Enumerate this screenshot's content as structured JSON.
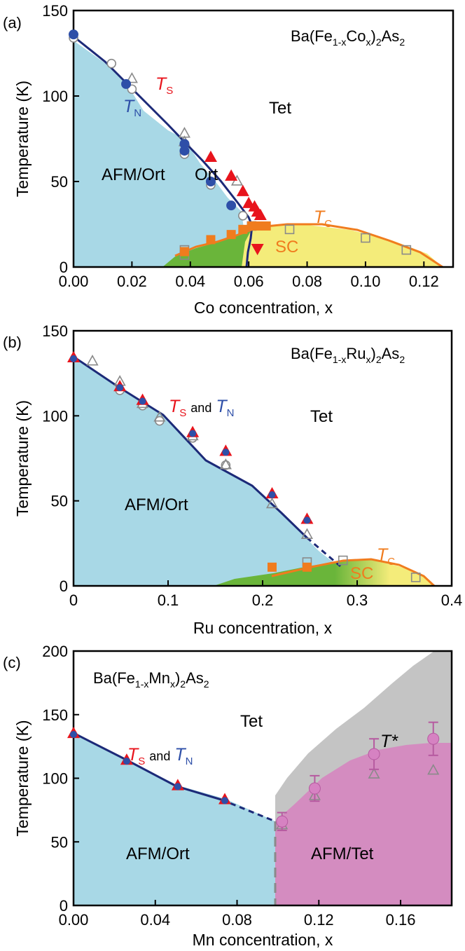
{
  "colors": {
    "afm_ort": "#a8d8e6",
    "sc_green": "#6ab53a",
    "sc_yellow": "#f4ec7a",
    "afm_tet": "#d48cc0",
    "gray_region": "#c4c4c4",
    "navy": "#1c2a78",
    "red": "#e8141c",
    "orange": "#f07c1e",
    "pink_marker": "#d682c2",
    "open_marker": "#8a8a8a",
    "blue_marker": "#2e4fa8"
  },
  "chart_data": [
    {
      "type": "scatter",
      "panel_label": "(a)",
      "compound": "Ba(Fe1-xCox)2As2",
      "xlabel": "Co concentration, x",
      "ylabel": "Temperature (K)",
      "xlim": [
        0,
        0.13
      ],
      "ylim": [
        0,
        150
      ],
      "xticks": [
        "0.00",
        "0.02",
        "0.04",
        "0.06",
        "0.08",
        "0.10",
        "0.12"
      ],
      "yticks": [
        "0",
        "50",
        "100",
        "150"
      ],
      "region_labels": [
        "AFM/Ort",
        "Ort",
        "Tet",
        "SC"
      ],
      "curve_labels": {
        "ts": "T",
        "ts_sub": "S",
        "tn": "T",
        "tn_sub": "N",
        "tc": "T",
        "tc_sub": "C"
      },
      "series": [
        {
          "name": "TN",
          "marker": "filled-circle",
          "x": [
            0.0,
            0.018,
            0.038,
            0.038,
            0.047,
            0.054
          ],
          "y": [
            136,
            107,
            72,
            68,
            50,
            36
          ]
        },
        {
          "name": "TS",
          "marker": "filled-triangle",
          "x": [
            0.047,
            0.054,
            0.058,
            0.06,
            0.062,
            0.063,
            0.064
          ],
          "y": [
            64,
            53,
            44,
            37,
            35,
            32,
            30
          ]
        },
        {
          "name": "TS (reentrant)",
          "marker": "filled-triangle-down",
          "x": [
            0.063
          ],
          "y": [
            11
          ]
        },
        {
          "name": "TC",
          "marker": "filled-square",
          "x": [
            0.038,
            0.047,
            0.054,
            0.058,
            0.061,
            0.063,
            0.066
          ],
          "y": [
            9,
            16,
            19,
            22,
            24,
            24,
            24
          ]
        },
        {
          "name": "open circles",
          "marker": "open-circle",
          "x": [
            0.0,
            0.013,
            0.02,
            0.038,
            0.038,
            0.047,
            0.058
          ],
          "y": [
            134,
            119,
            104,
            67,
            66,
            48,
            30
          ]
        },
        {
          "name": "open triangles",
          "marker": "open-triangle",
          "x": [
            0.02,
            0.038,
            0.038,
            0.056
          ],
          "y": [
            110,
            78,
            73,
            50
          ]
        },
        {
          "name": "open squares",
          "marker": "open-square",
          "x": [
            0.038,
            0.038,
            0.061,
            0.074,
            0.1,
            0.114
          ],
          "y": [
            10,
            7,
            24,
            22,
            17,
            10
          ]
        }
      ]
    },
    {
      "type": "scatter",
      "panel_label": "(b)",
      "compound": "Ba(Fe1-xRux)2As2",
      "xlabel": "Ru concentration, x",
      "ylabel": "Temperature (K)",
      "xlim": [
        0,
        0.4
      ],
      "ylim": [
        0,
        150
      ],
      "xticks": [
        "0",
        "0.1",
        "0.2",
        "0.3",
        "0.4"
      ],
      "yticks": [
        "0",
        "50",
        "100",
        "150"
      ],
      "region_labels": [
        "AFM/Ort",
        "Tet",
        "SC"
      ],
      "curve_labels": {
        "ts": "T",
        "ts_sub": "S",
        "and": "and",
        "tn": "T",
        "tn_sub": "N",
        "tc": "T",
        "tc_sub": "C"
      },
      "series": [
        {
          "name": "TS and TN",
          "marker": "red-triangle-blue-circle",
          "x": [
            0.0,
            0.049,
            0.073,
            0.126,
            0.161,
            0.21,
            0.247
          ],
          "y": [
            134,
            117,
            109,
            90,
            79,
            54,
            39
          ]
        },
        {
          "name": "TC",
          "marker": "filled-square",
          "x": [
            0.21,
            0.247
          ],
          "y": [
            11,
            11
          ]
        },
        {
          "name": "open triangles",
          "marker": "open-triangle",
          "x": [
            0.02,
            0.049,
            0.073,
            0.091,
            0.126,
            0.161,
            0.21,
            0.247
          ],
          "y": [
            132,
            120,
            107,
            99,
            88,
            71,
            48,
            30
          ]
        },
        {
          "name": "open circles",
          "marker": "open-circle",
          "x": [
            0.049,
            0.073,
            0.091,
            0.126,
            0.161
          ],
          "y": [
            115,
            106,
            97,
            87,
            71
          ]
        },
        {
          "name": "open squares",
          "marker": "open-square",
          "x": [
            0.247,
            0.285,
            0.362
          ],
          "y": [
            14,
            15,
            5
          ]
        }
      ]
    },
    {
      "type": "scatter",
      "panel_label": "(c)",
      "compound": "Ba(Fe1-xMnx)2As2",
      "xlabel": "Mn concentration, x",
      "ylabel": "Temperature (K)",
      "xlim": [
        0,
        0.185
      ],
      "ylim": [
        0,
        200
      ],
      "xticks": [
        "0.00",
        "0.04",
        "0.08",
        "0.12",
        "0.16"
      ],
      "yticks": [
        "0",
        "50",
        "100",
        "150",
        "200"
      ],
      "region_labels": [
        "AFM/Ort",
        "AFM/Tet",
        "Tet"
      ],
      "curve_labels": {
        "ts": "T",
        "ts_sub": "S",
        "and": "and",
        "tn": "T",
        "tn_sub": "N",
        "tstar": "T*"
      },
      "series": [
        {
          "name": "TS and TN",
          "marker": "red-triangle-blue-circle",
          "x": [
            0.0,
            0.026,
            0.051,
            0.074
          ],
          "y": [
            135,
            114,
            94,
            83
          ]
        },
        {
          "name": "T*",
          "marker": "pink-circle-errorbar",
          "x": [
            0.102,
            0.118,
            0.147,
            0.176
          ],
          "y": [
            66,
            92,
            119,
            131
          ],
          "err": [
            7,
            10,
            12,
            13
          ]
        },
        {
          "name": "open triangles",
          "marker": "open-triangle",
          "x": [
            0.102,
            0.118,
            0.147,
            0.176
          ],
          "y": [
            63,
            86,
            103,
            106
          ]
        }
      ]
    }
  ]
}
